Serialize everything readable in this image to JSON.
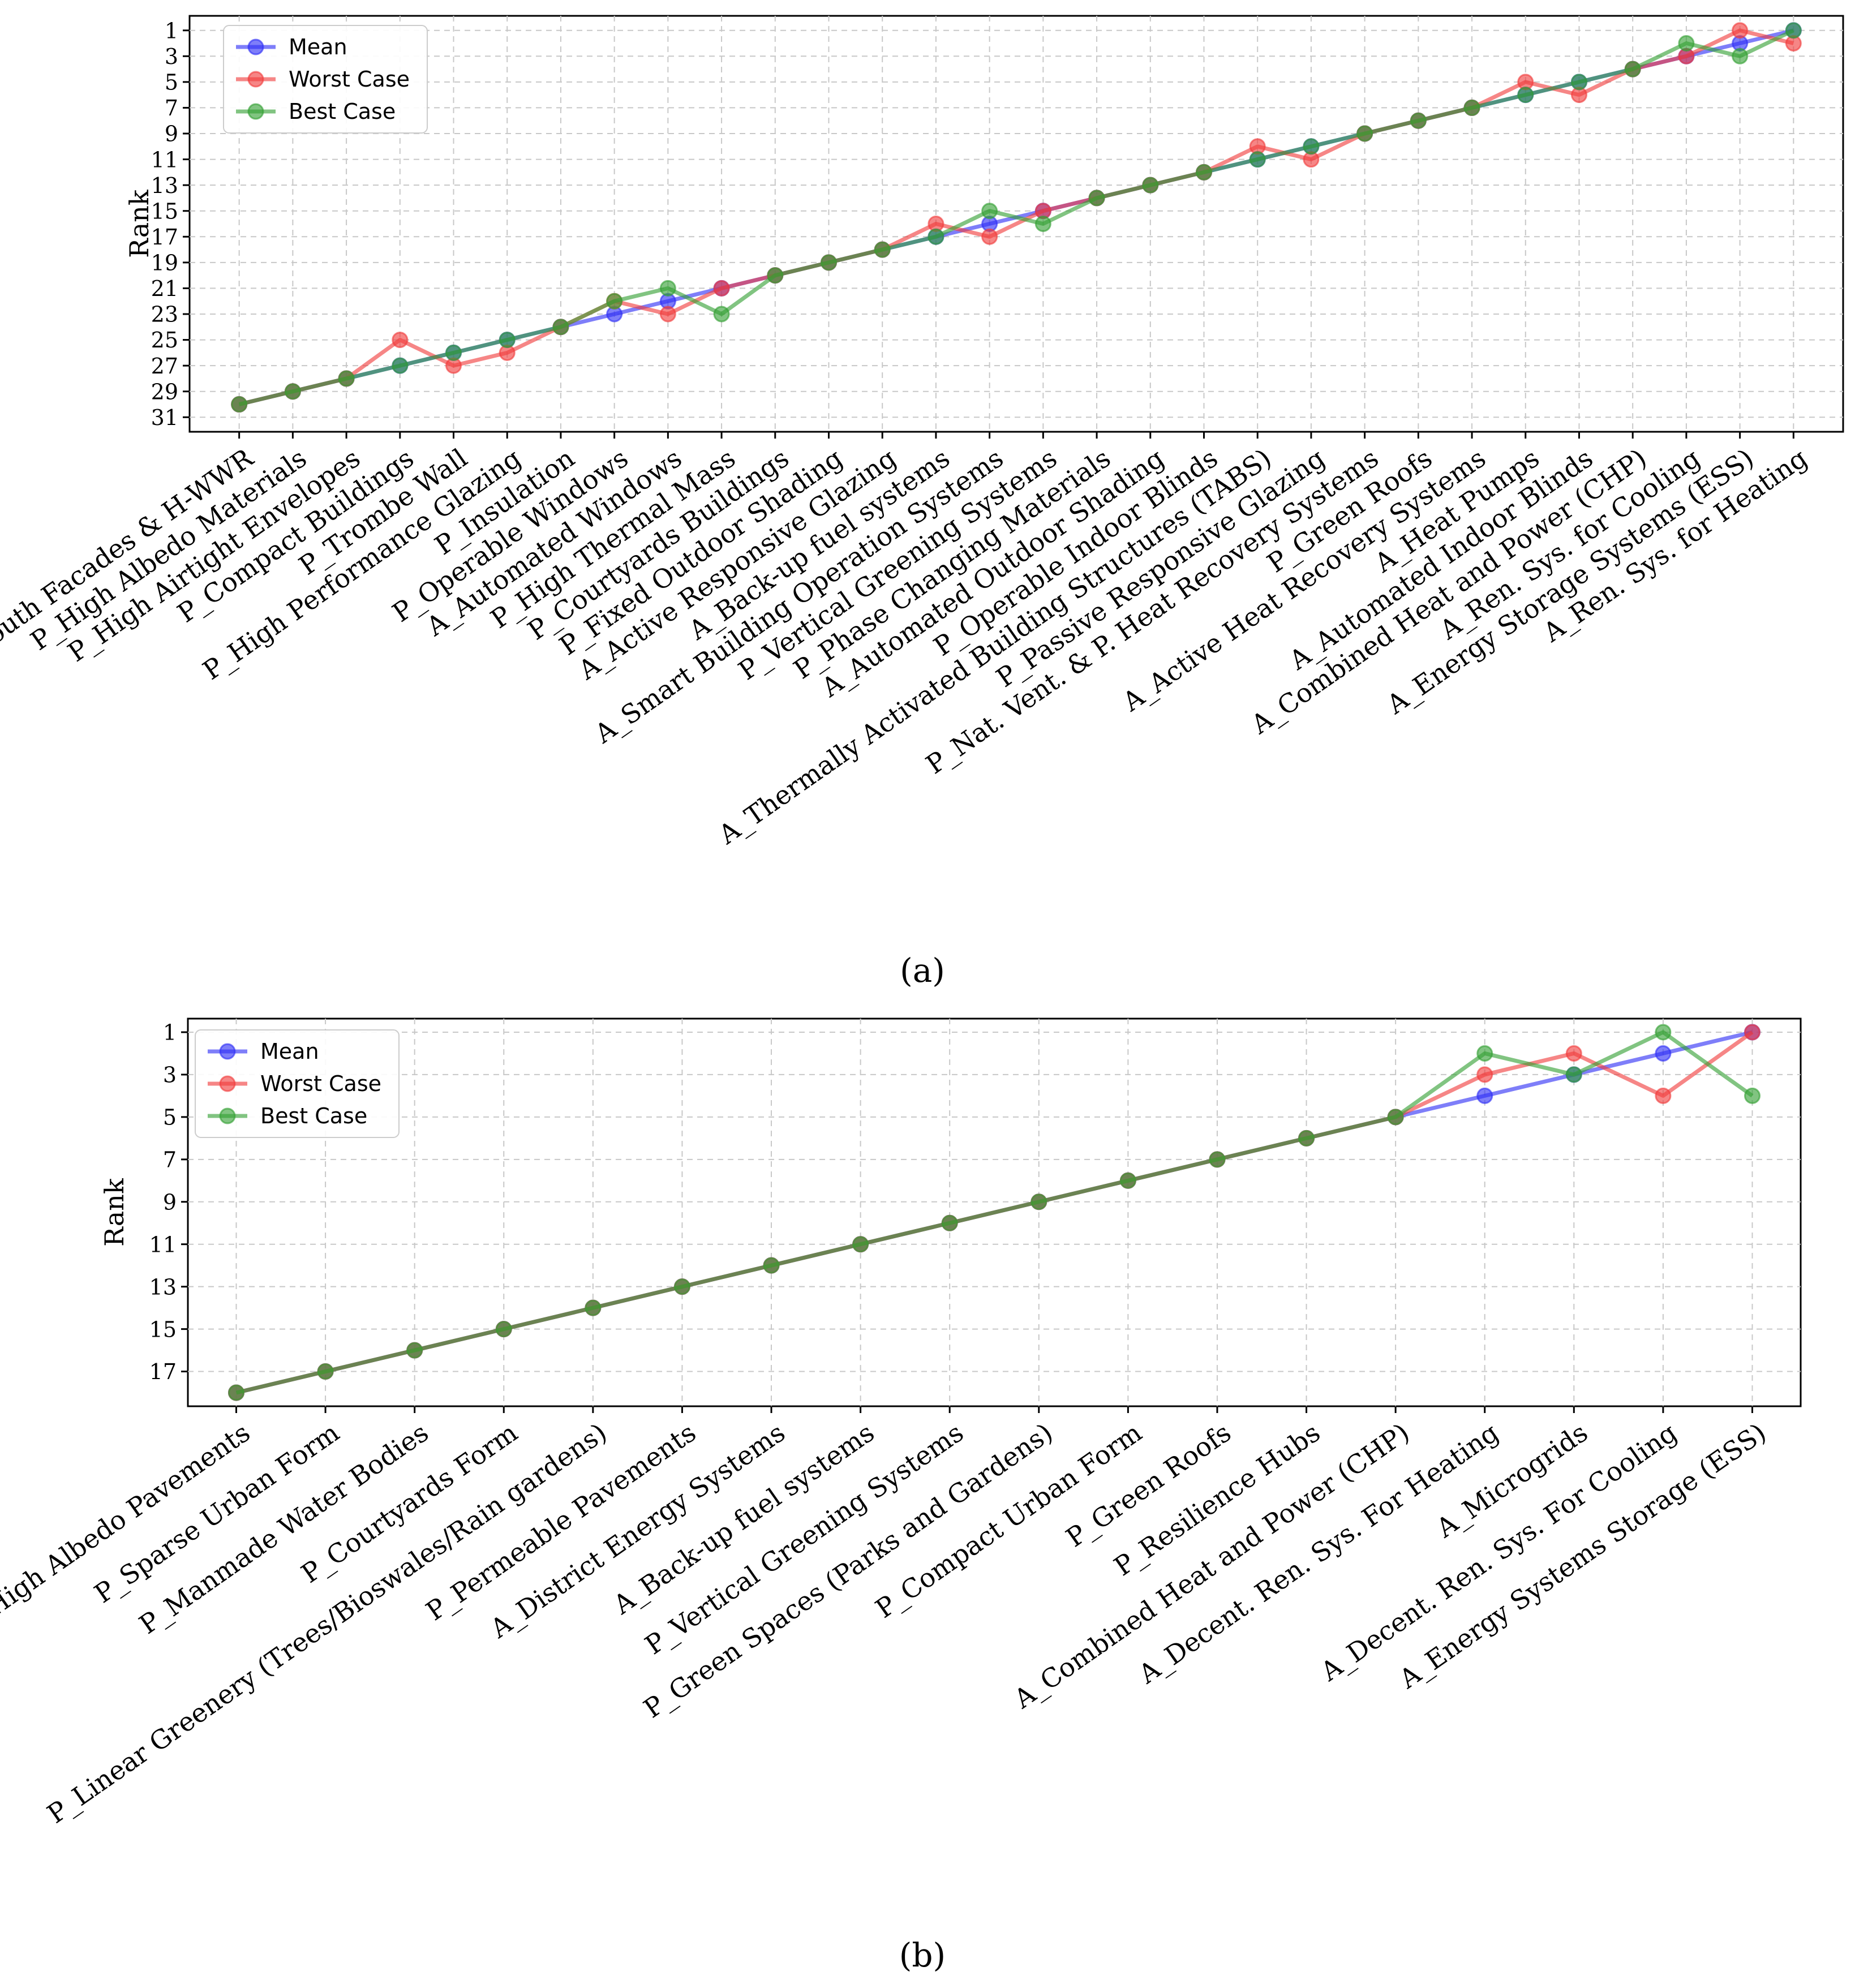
{
  "colors": {
    "mean": "#2f2ff5",
    "worst": "#f03c3c",
    "best": "#33a033",
    "grid": "#c8c8c8"
  },
  "legend_labels": [
    "Mean",
    "Worst Case",
    "Best Case"
  ],
  "panel_labels": [
    "(a)",
    "(b)"
  ],
  "chart_data": [
    {
      "type": "line",
      "panel": "(a)",
      "ylabel": "Rank",
      "y_axis_inverted": true,
      "ylim": [
        31,
        1
      ],
      "yticks": [
        1,
        3,
        5,
        7,
        9,
        11,
        13,
        15,
        17,
        19,
        21,
        23,
        25,
        27,
        29,
        31
      ],
      "grid": true,
      "legend_position": "top-left",
      "categories": [
        "P_South Facades & H-WWR",
        "P_High Albedo Materials",
        "P_High Airtight Envelopes",
        "P_Compact Buildings",
        "P_Trombe Wall",
        "P_High Performance Glazing",
        "P_Insulation",
        "P_Operable Windows",
        "A_Automated Windows",
        "P_High Thermal Mass",
        "P_Courtyards Buildings",
        "P_Fixed Outdoor Shading",
        "A_Active Responsive Glazing",
        "A_Back-up fuel systems",
        "A_Smart Building Operation Systems",
        "P_Vertical Greening Systems",
        "P_Phase Changing Materials",
        "A_Automated Outdoor Shading",
        "P_Operable Indoor Blinds",
        "A_Thermally Activated Building Structures (TABS)",
        "P_Passive Responsive Glazing",
        "P_Nat. Vent. & P. Heat Recovery Systems",
        "P_Green Roofs",
        "A_Active Heat Recovery Systems",
        "A_Heat Pumps",
        "A_Automated Indoor Blinds",
        "A_Combined Heat and Power (CHP)",
        "A_Ren. Sys. for Cooling",
        "A_Energy Storage Systems (ESS)",
        "A_Ren. Sys. for Heating"
      ],
      "series": [
        {
          "name": "Mean",
          "values": [
            30,
            29,
            28,
            27,
            26,
            25,
            24,
            23,
            22,
            21,
            20,
            19,
            18,
            17,
            16,
            15,
            14,
            13,
            12,
            11,
            10,
            9,
            8,
            7,
            6,
            5,
            4,
            3,
            2,
            1
          ]
        },
        {
          "name": "Worst Case",
          "values": [
            30,
            29,
            28,
            25,
            27,
            26,
            24,
            22,
            23,
            21,
            20,
            19,
            18,
            16,
            17,
            15,
            14,
            13,
            12,
            10,
            11,
            9,
            8,
            7,
            5,
            6,
            4,
            3,
            1,
            2
          ]
        },
        {
          "name": "Best Case",
          "values": [
            30,
            29,
            28,
            27,
            26,
            25,
            24,
            22,
            21,
            23,
            20,
            19,
            18,
            17,
            15,
            16,
            14,
            13,
            12,
            11,
            10,
            9,
            8,
            7,
            6,
            5,
            4,
            2,
            3,
            1
          ]
        }
      ]
    },
    {
      "type": "line",
      "panel": "(b)",
      "ylabel": "Rank",
      "y_axis_inverted": true,
      "ylim": [
        18,
        1
      ],
      "yticks": [
        1,
        3,
        5,
        7,
        9,
        11,
        13,
        15,
        17
      ],
      "grid": true,
      "legend_position": "top-left",
      "categories": [
        "P_High Albedo Pavements",
        "P_Sparse Urban Form",
        "P_Manmade Water Bodies",
        "P_Courtyards Form",
        "P_Linear Greenery (Trees/Bioswales/Rain gardens)",
        "P_Permeable Pavements",
        "A_District Energy Systems",
        "A_Back-up fuel systems",
        "P_Vertical Greening Systems",
        "P_Green Spaces (Parks and Gardens)",
        "P_Compact Urban Form",
        "P_Green Roofs",
        "P_Resilience Hubs",
        "A_Combined Heat and Power (CHP)",
        "A_Decent. Ren. Sys. For Heating",
        "A_Microgrids",
        "A_Decent. Ren. Sys. For Cooling",
        "A_Energy Systems Storage (ESS)"
      ],
      "series": [
        {
          "name": "Mean",
          "values": [
            18,
            17,
            16,
            15,
            14,
            13,
            12,
            11,
            10,
            9,
            8,
            7,
            6,
            5,
            4,
            3,
            2,
            1
          ]
        },
        {
          "name": "Worst Case",
          "values": [
            18,
            17,
            16,
            15,
            14,
            13,
            12,
            11,
            10,
            9,
            8,
            7,
            6,
            5,
            3,
            2,
            4,
            1
          ]
        },
        {
          "name": "Best Case",
          "values": [
            18,
            17,
            16,
            15,
            14,
            13,
            12,
            11,
            10,
            9,
            8,
            7,
            6,
            5,
            2,
            3,
            1,
            4
          ]
        }
      ]
    }
  ]
}
